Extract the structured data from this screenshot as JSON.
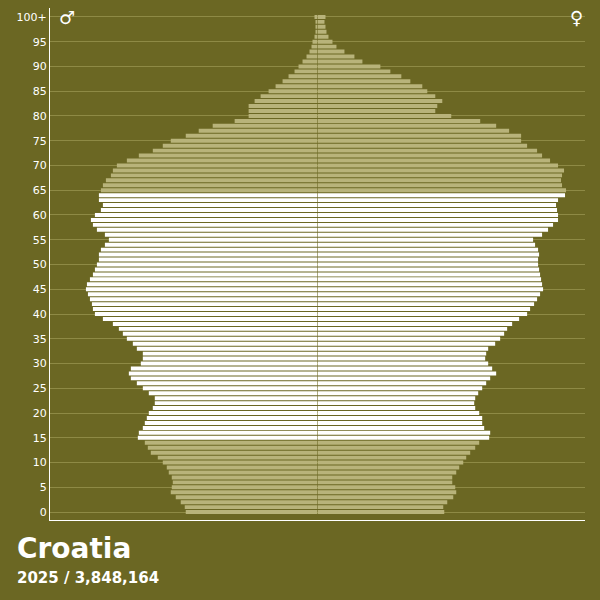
{
  "chart_data": {
    "type": "bar",
    "orientation": "horizontal",
    "title": "Croatia",
    "subtitle": "2025 / 3,848,164",
    "categories": [
      0,
      1,
      2,
      3,
      4,
      5,
      6,
      7,
      8,
      9,
      10,
      11,
      12,
      13,
      14,
      15,
      16,
      17,
      18,
      19,
      20,
      21,
      22,
      23,
      24,
      25,
      26,
      27,
      28,
      29,
      30,
      31,
      32,
      33,
      34,
      35,
      36,
      37,
      38,
      39,
      40,
      41,
      42,
      43,
      44,
      45,
      46,
      47,
      48,
      49,
      50,
      51,
      52,
      53,
      54,
      55,
      56,
      57,
      58,
      59,
      60,
      61,
      62,
      63,
      64,
      65,
      66,
      67,
      68,
      69,
      70,
      71,
      72,
      73,
      74,
      75,
      76,
      77,
      78,
      79,
      80,
      81,
      82,
      83,
      84,
      85,
      86,
      87,
      88,
      89,
      90,
      91,
      92,
      93,
      94,
      95,
      96,
      97,
      98,
      99,
      100
    ],
    "series": [
      {
        "name": "♂",
        "values": [
          16500,
          16625,
          17125,
          17750,
          18375,
          18250,
          18125,
          18250,
          18625,
          18875,
          19375,
          20000,
          20875,
          21250,
          21625,
          22500,
          22375,
          21875,
          21625,
          21375,
          21125,
          20625,
          20375,
          20375,
          21125,
          21875,
          22625,
          23375,
          23625,
          23375,
          22125,
          21875,
          21875,
          22625,
          23125,
          23875,
          24375,
          24875,
          25625,
          26875,
          27875,
          28125,
          28250,
          28500,
          28750,
          29000,
          28875,
          28500,
          28125,
          27875,
          27625,
          27375,
          27375,
          27125,
          26625,
          26125,
          26625,
          27625,
          28125,
          28375,
          27875,
          27125,
          26875,
          27375,
          27375,
          27125,
          26875,
          26500,
          25875,
          25625,
          25125,
          23875,
          22375,
          20625,
          19375,
          18375,
          16500,
          14875,
          13125,
          10375,
          8625,
          8625,
          8625,
          7875,
          7125,
          6125,
          5250,
          4375,
          3625,
          2875,
          2375,
          1875,
          1375,
          1000,
          750,
          625,
          375,
          250,
          250,
          250,
          375
        ],
        "colors": [
          "#b8b37a",
          "#b8b37a",
          "#b8b37a",
          "#b8b37a",
          "#b8b37a",
          "#b8b37a",
          "#b8b37a",
          "#b8b37a",
          "#b8b37a",
          "#b8b37a",
          "#b8b37a",
          "#b8b37a",
          "#b8b37a",
          "#b8b37a",
          "#b8b37a",
          "#ffffff",
          "#ffffff",
          "#ffffff",
          "#ffffff",
          "#ffffff",
          "#ffffff",
          "#ffffff",
          "#ffffff",
          "#ffffff",
          "#ffffff",
          "#ffffff",
          "#ffffff",
          "#ffffff",
          "#ffffff",
          "#ffffff",
          "#ffffff",
          "#ffffff",
          "#ffffff",
          "#ffffff",
          "#ffffff",
          "#ffffff",
          "#ffffff",
          "#ffffff",
          "#ffffff",
          "#ffffff",
          "#ffffff",
          "#ffffff",
          "#ffffff",
          "#ffffff",
          "#ffffff",
          "#ffffff",
          "#ffffff",
          "#ffffff",
          "#ffffff",
          "#ffffff",
          "#ffffff",
          "#ffffff",
          "#ffffff",
          "#ffffff",
          "#ffffff",
          "#ffffff",
          "#ffffff",
          "#ffffff",
          "#ffffff",
          "#ffffff",
          "#ffffff",
          "#ffffff",
          "#ffffff",
          "#ffffff",
          "#ffffff",
          "#b8b37a",
          "#b8b37a",
          "#b8b37a",
          "#b8b37a",
          "#b8b37a",
          "#b8b37a",
          "#b8b37a",
          "#b8b37a",
          "#b8b37a",
          "#b8b37a",
          "#b8b37a",
          "#b8b37a",
          "#b8b37a",
          "#b8b37a",
          "#b8b37a",
          "#b8b37a",
          "#b8b37a",
          "#b8b37a",
          "#b8b37a",
          "#b8b37a",
          "#b8b37a",
          "#b8b37a",
          "#b8b37a",
          "#b8b37a",
          "#b8b37a",
          "#b8b37a",
          "#b8b37a",
          "#b8b37a",
          "#b8b37a",
          "#b8b37a",
          "#b8b37a",
          "#b8b37a",
          "#b8b37a",
          "#b8b37a",
          "#b8b37a",
          "#b8b37a"
        ]
      },
      {
        "name": "♀",
        "values": [
          15875,
          15750,
          16250,
          17000,
          17375,
          17250,
          16875,
          16875,
          17375,
          17750,
          18250,
          18625,
          19125,
          19750,
          20250,
          21500,
          21625,
          20875,
          20625,
          20625,
          20250,
          19750,
          19625,
          19750,
          20125,
          20625,
          21125,
          21625,
          22375,
          21875,
          21375,
          21000,
          21125,
          21375,
          22250,
          22875,
          23375,
          23750,
          24375,
          25250,
          26250,
          26625,
          27125,
          27500,
          27875,
          28250,
          28125,
          28000,
          27875,
          27750,
          27625,
          27625,
          27750,
          27625,
          27250,
          27000,
          28125,
          28875,
          29500,
          30125,
          30125,
          30000,
          29875,
          30125,
          31000,
          31125,
          30625,
          30500,
          30625,
          30875,
          30125,
          29125,
          28125,
          27500,
          26250,
          25500,
          25500,
          24000,
          22375,
          20375,
          16750,
          14750,
          15000,
          15625,
          14750,
          13750,
          13125,
          11625,
          10500,
          9125,
          7875,
          5625,
          4625,
          3375,
          2375,
          1875,
          1375,
          1125,
          1000,
          875,
          1000
        ],
        "colors": [
          "#b8b37a",
          "#b8b37a",
          "#b8b37a",
          "#b8b37a",
          "#b8b37a",
          "#b8b37a",
          "#b8b37a",
          "#b8b37a",
          "#b8b37a",
          "#b8b37a",
          "#b8b37a",
          "#b8b37a",
          "#b8b37a",
          "#b8b37a",
          "#b8b37a",
          "#ffffff",
          "#ffffff",
          "#ffffff",
          "#ffffff",
          "#ffffff",
          "#ffffff",
          "#ffffff",
          "#ffffff",
          "#ffffff",
          "#ffffff",
          "#ffffff",
          "#ffffff",
          "#ffffff",
          "#ffffff",
          "#ffffff",
          "#ffffff",
          "#ffffff",
          "#ffffff",
          "#ffffff",
          "#ffffff",
          "#ffffff",
          "#ffffff",
          "#ffffff",
          "#ffffff",
          "#ffffff",
          "#ffffff",
          "#ffffff",
          "#ffffff",
          "#ffffff",
          "#ffffff",
          "#ffffff",
          "#ffffff",
          "#ffffff",
          "#ffffff",
          "#ffffff",
          "#ffffff",
          "#ffffff",
          "#ffffff",
          "#ffffff",
          "#ffffff",
          "#ffffff",
          "#ffffff",
          "#ffffff",
          "#ffffff",
          "#ffffff",
          "#ffffff",
          "#ffffff",
          "#ffffff",
          "#ffffff",
          "#ffffff",
          "#b8b37a",
          "#b8b37a",
          "#b8b37a",
          "#b8b37a",
          "#b8b37a",
          "#b8b37a",
          "#b8b37a",
          "#b8b37a",
          "#b8b37a",
          "#b8b37a",
          "#b8b37a",
          "#b8b37a",
          "#b8b37a",
          "#b8b37a",
          "#b8b37a",
          "#b8b37a",
          "#b8b37a",
          "#b8b37a",
          "#b8b37a",
          "#b8b37a",
          "#b8b37a",
          "#b8b37a",
          "#b8b37a",
          "#b8b37a",
          "#b8b37a",
          "#b8b37a",
          "#b8b37a",
          "#b8b37a",
          "#b8b37a",
          "#b8b37a",
          "#b8b37a",
          "#b8b37a",
          "#b8b37a",
          "#b8b37a",
          "#b8b37a",
          "#b8b37a"
        ]
      }
    ],
    "xlim": [
      0,
      33500
    ],
    "ylim": [
      -1.6,
      101.8
    ],
    "yticks": [
      0,
      5,
      10,
      15,
      20,
      25,
      30,
      35,
      40,
      45,
      50,
      55,
      60,
      65,
      70,
      75,
      80,
      85,
      90,
      95,
      {
        "value": 100,
        "label": "100+"
      }
    ],
    "grid": true,
    "tick_labels": "y"
  }
}
